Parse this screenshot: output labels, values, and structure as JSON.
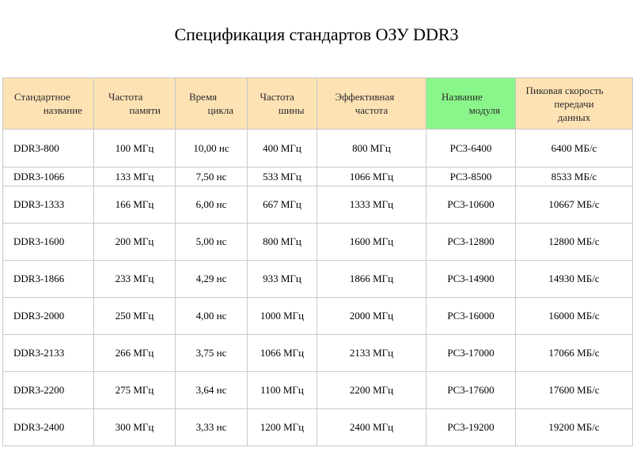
{
  "title": "Спецификация стандартов ОЗУ DDR3",
  "table": {
    "headers": [
      [
        "Стандартное",
        "название"
      ],
      [
        "Частота",
        "памяти"
      ],
      [
        "Время",
        "цикла"
      ],
      [
        "Частота",
        "шины"
      ],
      [
        "Эффективная",
        "частота"
      ],
      [
        "Название",
        "модуля"
      ],
      [
        "Пиковая скорость",
        "передачи",
        "данных"
      ]
    ],
    "rows": [
      [
        "DDR3-800",
        "100 МГц",
        "10,00 нс",
        "400 МГц",
        "800 МГц",
        "PC3-6400",
        "6400 МБ/с"
      ],
      [
        "DDR3-1066",
        "133 МГц",
        "7,50 нс",
        "533 МГц",
        "1066 МГц",
        "PC3-8500",
        "8533 МБ/с"
      ],
      [
        "DDR3-1333",
        "166 МГц",
        "6,00 нс",
        "667 МГц",
        "1333 МГц",
        "PC3-10600",
        "10667 МБ/с"
      ],
      [
        "DDR3-1600",
        "200 МГц",
        "5,00 нс",
        "800 МГц",
        "1600 МГц",
        "PC3-12800",
        "12800 МБ/с"
      ],
      [
        "DDR3-1866",
        "233 МГц",
        "4,29 нс",
        "933 МГц",
        "1866 МГц",
        "PC3-14900",
        "14930 МБ/с"
      ],
      [
        "DDR3-2000",
        "250 МГц",
        "4,00 нс",
        "1000 МГц",
        "2000 МГц",
        "PC3-16000",
        "16000 МБ/с"
      ],
      [
        "DDR3-2133",
        "266 МГц",
        "3,75 нс",
        "1066 МГц",
        "2133 МГц",
        "PC3-17000",
        "17066 МБ/с"
      ],
      [
        "DDR3-2200",
        "275 МГц",
        "3,64 нс",
        "1100 МГц",
        "2200 МГц",
        "PC3-17600",
        "17600 МБ/с"
      ],
      [
        "DDR3-2400",
        "300 МГц",
        "3,33 нс",
        "1200 МГц",
        "2400 МГц",
        "PC3-19200",
        "19200 МБ/с"
      ]
    ]
  },
  "colors": {
    "header_fill": "#fde2b4",
    "module_header_fill": "#8af58a",
    "grid_line": "#c8c8c8"
  }
}
